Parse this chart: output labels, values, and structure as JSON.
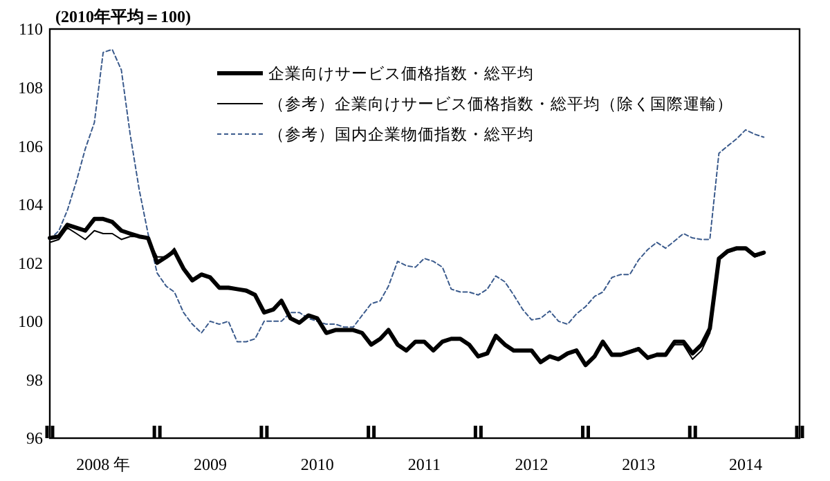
{
  "chart_data": {
    "type": "line",
    "ylabel": "(2010年平均＝100)",
    "x": [
      "2008-01",
      "2008-02",
      "2008-03",
      "2008-04",
      "2008-05",
      "2008-06",
      "2008-07",
      "2008-08",
      "2008-09",
      "2008-10",
      "2008-11",
      "2008-12",
      "2009-01",
      "2009-02",
      "2009-03",
      "2009-04",
      "2009-05",
      "2009-06",
      "2009-07",
      "2009-08",
      "2009-09",
      "2009-10",
      "2009-11",
      "2009-12",
      "2010-01",
      "2010-02",
      "2010-03",
      "2010-04",
      "2010-05",
      "2010-06",
      "2010-07",
      "2010-08",
      "2010-09",
      "2010-10",
      "2010-11",
      "2010-12",
      "2011-01",
      "2011-02",
      "2011-03",
      "2011-04",
      "2011-05",
      "2011-06",
      "2011-07",
      "2011-08",
      "2011-09",
      "2011-10",
      "2011-11",
      "2011-12",
      "2012-01",
      "2012-02",
      "2012-03",
      "2012-04",
      "2012-05",
      "2012-06",
      "2012-07",
      "2012-08",
      "2012-09",
      "2012-10",
      "2012-11",
      "2012-12",
      "2013-01",
      "2013-02",
      "2013-03",
      "2013-04",
      "2013-05",
      "2013-06",
      "2013-07",
      "2013-08",
      "2013-09",
      "2013-10",
      "2013-11",
      "2013-12",
      "2014-01",
      "2014-02",
      "2014-03",
      "2014-04",
      "2014-05",
      "2014-06",
      "2014-07",
      "2014-08",
      "2014-09"
    ],
    "series": [
      {
        "name": "企業向けサービス価格指数・総平均",
        "color": "#000000",
        "line_style": "solid",
        "values": [
          102.85,
          102.9,
          103.3,
          103.2,
          103.1,
          103.5,
          103.5,
          103.4,
          103.1,
          103.0,
          102.9,
          102.85,
          102.0,
          102.2,
          102.4,
          101.8,
          101.4,
          101.6,
          101.5,
          101.15,
          101.15,
          101.1,
          101.05,
          100.9,
          100.3,
          100.4,
          100.7,
          100.1,
          99.95,
          100.2,
          100.1,
          99.6,
          99.7,
          99.7,
          99.7,
          99.6,
          99.2,
          99.4,
          99.7,
          99.2,
          99.0,
          99.3,
          99.3,
          99.0,
          99.3,
          99.4,
          99.4,
          99.2,
          98.8,
          98.9,
          99.5,
          99.2,
          99.0,
          99.0,
          99.0,
          98.6,
          98.8,
          98.7,
          98.9,
          99.0,
          98.5,
          98.8,
          99.3,
          98.85,
          98.85,
          98.95,
          99.05,
          98.75,
          98.85,
          98.85,
          99.3,
          99.3,
          98.9,
          99.2,
          99.75,
          102.15,
          102.4,
          102.5,
          102.5,
          102.25,
          102.35
        ]
      },
      {
        "name": "（参考）企業向けサービス価格指数・総平均（除く国際運輸）",
        "color": "#000000",
        "line_style": "solid",
        "values": [
          102.7,
          102.8,
          103.2,
          103.0,
          102.8,
          103.1,
          103.0,
          103.0,
          102.8,
          102.9,
          102.9,
          102.8,
          102.2,
          102.2,
          102.5,
          101.8,
          101.4,
          101.6,
          101.5,
          101.1,
          101.1,
          101.1,
          101.0,
          100.9,
          100.3,
          100.4,
          100.7,
          100.1,
          99.95,
          100.2,
          100.1,
          99.6,
          99.7,
          99.7,
          99.7,
          99.6,
          99.2,
          99.4,
          99.7,
          99.2,
          99.0,
          99.3,
          99.3,
          99.0,
          99.3,
          99.4,
          99.4,
          99.2,
          98.8,
          98.9,
          99.5,
          99.2,
          99.0,
          99.0,
          99.0,
          98.6,
          98.8,
          98.7,
          98.9,
          99.0,
          98.5,
          98.8,
          99.3,
          98.9,
          98.9,
          99.0,
          99.1,
          98.7,
          98.9,
          98.9,
          99.2,
          99.2,
          98.7,
          99.0,
          99.6,
          102.1,
          102.35,
          102.45,
          102.45,
          102.2,
          102.3
        ]
      },
      {
        "name": "（参考）国内企業物価指数・総平均",
        "color": "#3a5a8c",
        "line_style": "dashed",
        "values": [
          102.8,
          103.1,
          103.8,
          104.8,
          105.9,
          106.8,
          109.2,
          109.3,
          108.6,
          106.4,
          104.5,
          103.0,
          101.65,
          101.2,
          101.0,
          100.3,
          99.9,
          99.6,
          100.0,
          99.9,
          100.0,
          99.3,
          99.3,
          99.4,
          100.0,
          100.0,
          100.0,
          100.3,
          100.3,
          100.1,
          100.0,
          99.9,
          99.9,
          99.8,
          99.8,
          100.2,
          100.6,
          100.7,
          101.2,
          102.05,
          101.9,
          101.85,
          102.15,
          102.05,
          101.85,
          101.1,
          101.0,
          101.0,
          100.9,
          101.1,
          101.55,
          101.35,
          100.9,
          100.4,
          100.05,
          100.1,
          100.35,
          100.0,
          99.9,
          100.25,
          100.5,
          100.85,
          101.0,
          101.5,
          101.6,
          101.6,
          102.1,
          102.45,
          102.7,
          102.5,
          102.75,
          103.0,
          102.85,
          102.8,
          102.8,
          105.75,
          106.0,
          106.25,
          106.55,
          106.4,
          106.3
        ]
      }
    ],
    "xlim": [
      "2008-01",
      "2015-01"
    ],
    "xticks": [
      {
        "value": "2008-01",
        "label": null
      },
      {
        "value": "2008-07",
        "label": "2008 年"
      },
      {
        "value": "2009-01",
        "label": null
      },
      {
        "value": "2009-07",
        "label": "2009"
      },
      {
        "value": "2010-01",
        "label": null
      },
      {
        "value": "2010-07",
        "label": "2010"
      },
      {
        "value": "2011-01",
        "label": null
      },
      {
        "value": "2011-07",
        "label": "2011"
      },
      {
        "value": "2012-01",
        "label": null
      },
      {
        "value": "2012-07",
        "label": "2012"
      },
      {
        "value": "2013-01",
        "label": null
      },
      {
        "value": "2013-07",
        "label": "2013"
      },
      {
        "value": "2014-01",
        "label": null
      },
      {
        "value": "2014-07",
        "label": "2014"
      },
      {
        "value": "2015-01",
        "label": null
      }
    ],
    "ylim": [
      96,
      110
    ],
    "yticks": [
      96,
      98,
      100,
      102,
      104,
      106,
      108,
      110
    ],
    "grid": false,
    "legend": "top",
    "marker": "none"
  }
}
